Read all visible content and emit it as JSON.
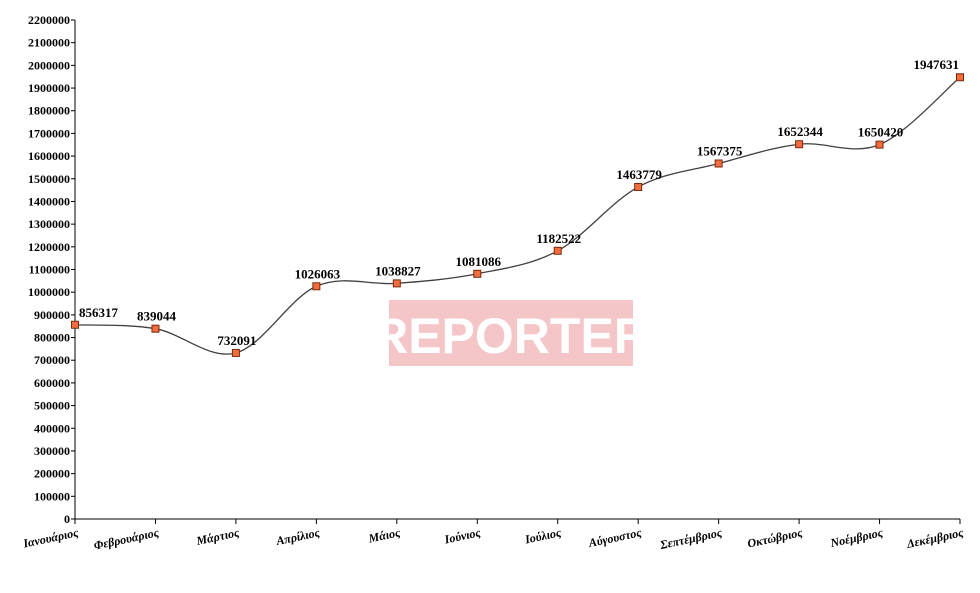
{
  "chart_data": {
    "type": "line",
    "title": "",
    "xlabel": "",
    "ylabel": "",
    "ylim": [
      0,
      2200000
    ],
    "ytick_step": 100000,
    "grid": false,
    "legend": "none",
    "smooth": true,
    "categories": [
      "Ιανουάριος",
      "Φεβρουάριος",
      "Μάρτιος",
      "Απρίλιος",
      "Μάιος",
      "Ιούνιος",
      "Ιούλιος",
      "Αύγουστος",
      "Σεπτέμβριος",
      "Οκτώβριος",
      "Νοέμβριος",
      "Δεκέμβριος"
    ],
    "series": [
      {
        "values": [
          856317,
          839044,
          732091,
          1026063,
          1038827,
          1081086,
          1182522,
          1463779,
          1567375,
          1652344,
          1650420,
          1947631
        ],
        "data_labels": [
          "856317",
          "839044",
          "732091",
          "1026063",
          "1038827",
          "1081086",
          "1182522",
          "1463779",
          "1567375",
          "1652344",
          "1650420",
          "1947631"
        ],
        "line_color": "#404040",
        "marker_fill": "#f26d3d",
        "marker_stroke": "#7a2a10"
      }
    ]
  },
  "watermark": {
    "text": "REPORTER",
    "background_color": "#f5c6c8"
  }
}
